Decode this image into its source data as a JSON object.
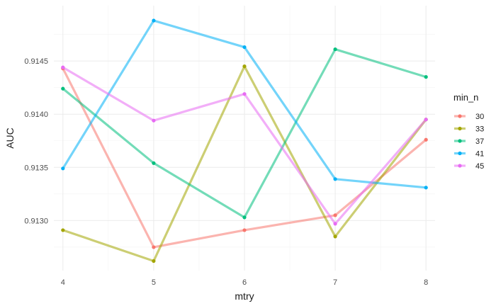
{
  "chart_data": {
    "type": "line",
    "title": "",
    "xlabel": "mtry",
    "ylabel": "AUC",
    "x": [
      4,
      5,
      6,
      7,
      8
    ],
    "xlim": [
      3.9,
      8.1
    ],
    "ylim": [
      0.91253,
      0.91502
    ],
    "x_ticks": [
      4,
      5,
      6,
      7,
      8
    ],
    "x_tick_labels": [
      "4",
      "5",
      "6",
      "7",
      "8"
    ],
    "y_ticks": [
      0.913,
      0.9135,
      0.914,
      0.9145
    ],
    "y_tick_labels": [
      "0.9130",
      "0.9135",
      "0.9140",
      "0.9145"
    ],
    "grid": true,
    "legend_title": "min_n",
    "legend_position": "right",
    "series": [
      {
        "name": "30",
        "color": "#F8766D",
        "values": [
          0.91443,
          0.91275,
          0.91291,
          0.91305,
          0.91376
        ]
      },
      {
        "name": "33",
        "color": "#A3A500",
        "values": [
          0.91291,
          0.91262,
          0.91445,
          0.91285,
          0.91395
        ]
      },
      {
        "name": "37",
        "color": "#00BF7D",
        "values": [
          0.91424,
          0.91354,
          0.91303,
          0.91461,
          0.91435
        ]
      },
      {
        "name": "41",
        "color": "#00B0F6",
        "values": [
          0.91349,
          0.91488,
          0.91463,
          0.91339,
          0.91331
        ]
      },
      {
        "name": "45",
        "color": "#E76BF3",
        "values": [
          0.91444,
          0.91394,
          0.91419,
          0.91297,
          0.91395
        ]
      }
    ]
  }
}
